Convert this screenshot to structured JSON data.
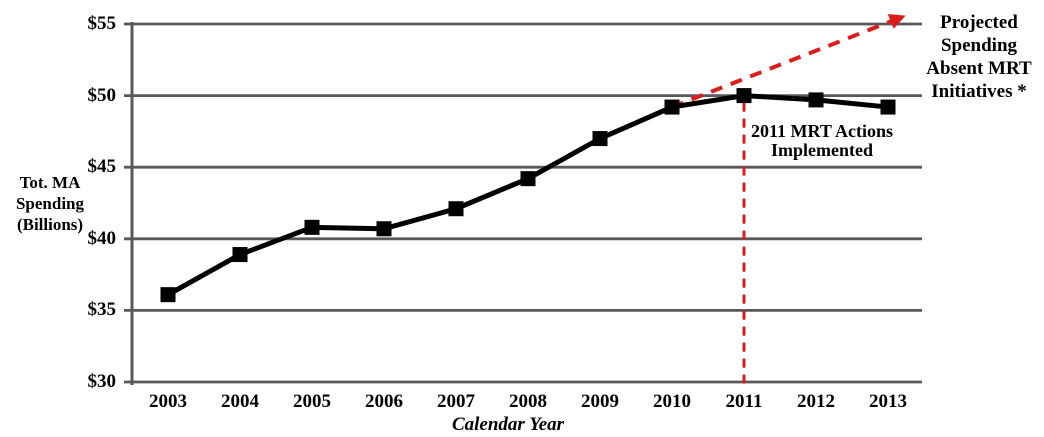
{
  "chart_data": {
    "type": "line",
    "title": "",
    "xlabel": "Calendar Year",
    "ylabel": "Tot. MA Spending (Billions)",
    "ylabel_lines": [
      "Tot. MA",
      "Spending",
      "(Billions)"
    ],
    "categories": [
      "2003",
      "2004",
      "2005",
      "2006",
      "2007",
      "2008",
      "2009",
      "2010",
      "2011",
      "2012",
      "2013"
    ],
    "yticks": [
      "$30",
      "$35",
      "$40",
      "$45",
      "$50",
      "$55"
    ],
    "ytick_values": [
      30,
      35,
      40,
      45,
      50,
      55
    ],
    "ylim": [
      30,
      55
    ],
    "grid": "horizontal",
    "legend_position": "none",
    "series": [
      {
        "name": "Total MA Spending",
        "type": "line",
        "marker": "square",
        "color": "#000000",
        "values": [
          36.1,
          38.9,
          40.8,
          40.7,
          42.1,
          44.2,
          47.0,
          49.2,
          50.0,
          49.7,
          49.2
        ]
      },
      {
        "name": "Projected Spending Absent MRT Initiatives",
        "type": "dashed-arrow-line",
        "color": "#dd1c1c",
        "from": {
          "year": 2010,
          "value": 49.2
        },
        "to": {
          "year": 2013.1,
          "value": 55.3
        }
      }
    ],
    "annotations": [
      {
        "id": "projected-spending-label",
        "lines": [
          "Projected",
          "Spending",
          "Absent MRT",
          "Initiatives *"
        ]
      },
      {
        "id": "mrt-actions-label",
        "lines": [
          "2011 MRT Actions",
          "Implemented"
        ]
      },
      {
        "id": "mrt-vline",
        "year": "2011",
        "style": "dashed",
        "color": "#dd1c1c"
      }
    ],
    "colors": {
      "series_line": "#000000",
      "gridline": "#595959",
      "axis": "#595959",
      "projection_red": "#dd1c1c",
      "text": "#000000"
    }
  }
}
